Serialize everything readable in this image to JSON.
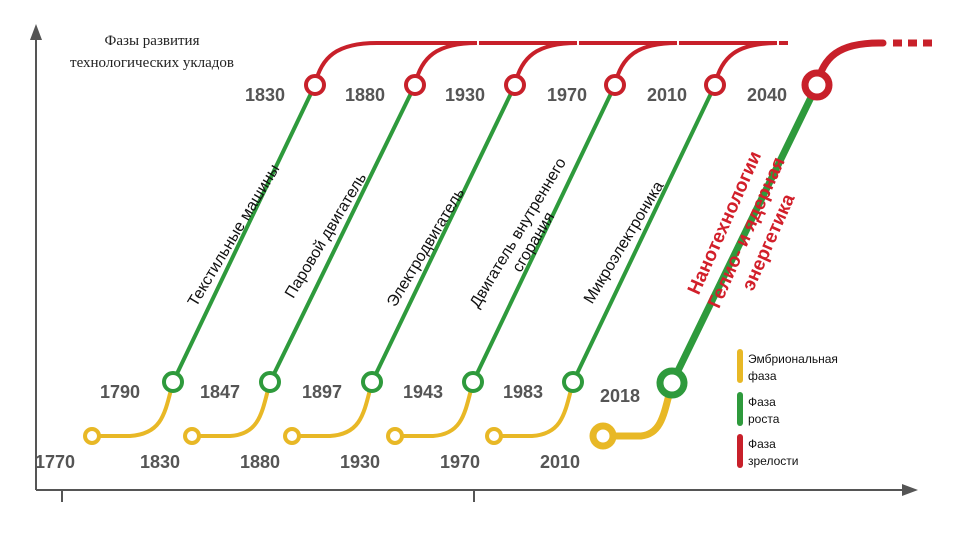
{
  "title": "Фазы развития технологических укладов",
  "colors": {
    "embryonic": "#e8b826",
    "growth": "#2e9a3c",
    "maturity": "#c8202a",
    "axis": "#555555"
  },
  "waves": [
    {
      "start_year": "1770",
      "growth_year": "1790",
      "maturity_year": "1830",
      "technology": [
        "Текстильные машины"
      ]
    },
    {
      "start_year": "1830",
      "growth_year": "1847",
      "maturity_year": "1880",
      "technology": [
        "Паровой двигатель"
      ]
    },
    {
      "start_year": "1880",
      "growth_year": "1897",
      "maturity_year": "1930",
      "technology": [
        "Электродвигатель"
      ]
    },
    {
      "start_year": "1930",
      "growth_year": "1943",
      "maturity_year": "1970",
      "technology": [
        "Двигатель внутреннего",
        "сгорания"
      ]
    },
    {
      "start_year": "1970",
      "growth_year": "1983",
      "maturity_year": "2010",
      "technology": [
        "Микроэлектроника"
      ]
    },
    {
      "start_year": "2010",
      "growth_year": "2018",
      "maturity_year": "2040",
      "technology": [
        "Нанотехнологии",
        "Гелио- и ядерная",
        "энергетика"
      ]
    }
  ],
  "legend": [
    {
      "lines": [
        "Эмбриональная",
        "фаза"
      ],
      "color": "#e8b826"
    },
    {
      "lines": [
        "Фаза",
        "роста"
      ],
      "color": "#2e9a3c"
    },
    {
      "lines": [
        "Фаза",
        "зрелости"
      ],
      "color": "#c8202a"
    }
  ]
}
